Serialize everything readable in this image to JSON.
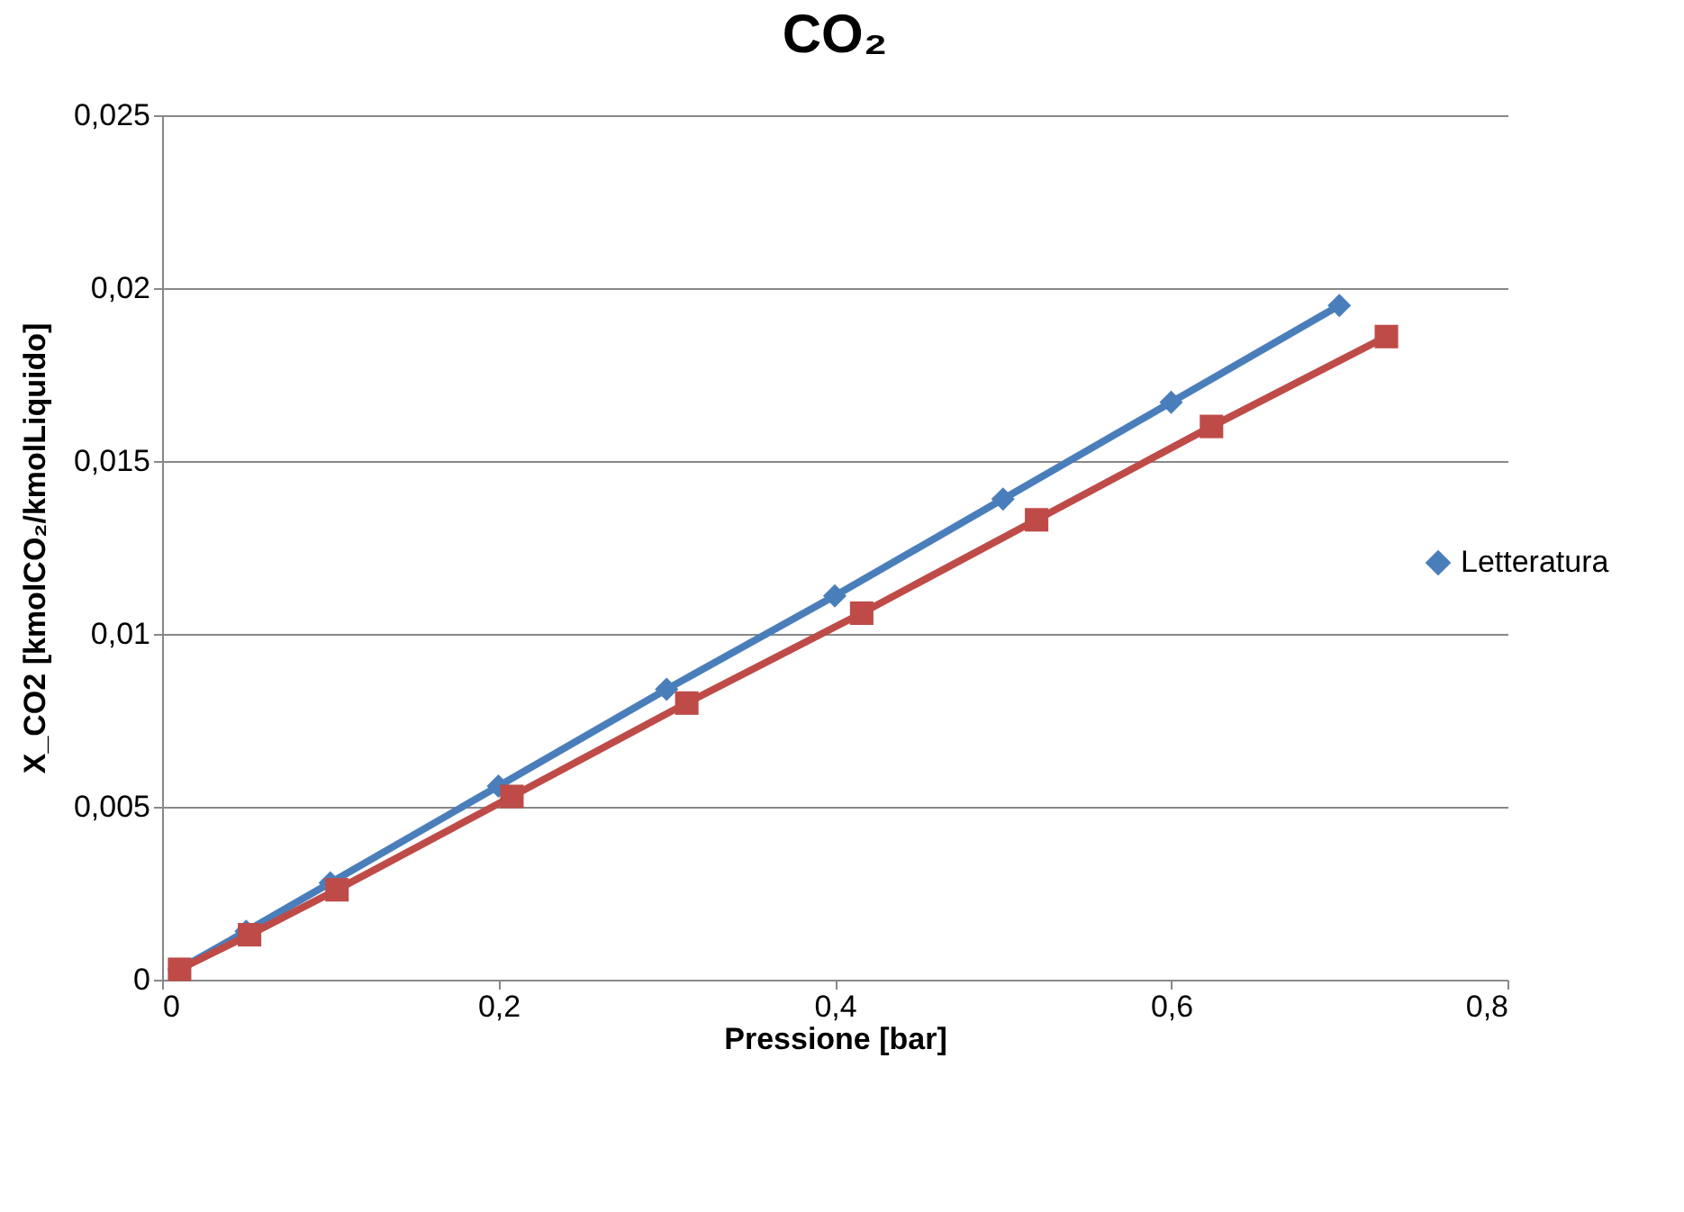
{
  "chart_data": {
    "type": "line",
    "title": "CO₂",
    "xlabel": "Pressione [bar]",
    "ylabel": "X_CO2 [kmolCO₂/kmolLiquido]",
    "series": [
      {
        "name": "Letteratura",
        "color": "#4a7ebb",
        "marker": "diamond",
        "x": [
          0.01,
          0.05,
          0.1,
          0.2,
          0.3,
          0.4,
          0.5,
          0.6,
          0.7
        ],
        "values": [
          0.0003,
          0.0014,
          0.0028,
          0.0056,
          0.0084,
          0.0111,
          0.0139,
          0.0167,
          0.0195
        ]
      },
      {
        "color": "#be4b48",
        "marker": "square",
        "x": [
          0.0104,
          0.052,
          0.104,
          0.208,
          0.312,
          0.416,
          0.52,
          0.624,
          0.728
        ],
        "values": [
          0.0003,
          0.0013,
          0.0026,
          0.0053,
          0.008,
          0.0106,
          0.0133,
          0.016,
          0.0186
        ]
      }
    ],
    "xlim": [
      0,
      0.8
    ],
    "xticks": [
      0,
      {
        "value": 0.2,
        "label": "0,2"
      },
      {
        "value": 0.4,
        "label": "0,4"
      },
      {
        "value": 0.6,
        "label": "0,6"
      },
      {
        "value": 0.8,
        "label": "0,8"
      }
    ],
    "ylim": [
      0,
      0.025
    ],
    "yticks": [
      0,
      {
        "value": 0.005,
        "label": "0,005"
      },
      {
        "value": 0.01,
        "label": "0,01"
      },
      {
        "value": 0.015,
        "label": "0,015"
      },
      {
        "value": 0.02,
        "label": "0,02"
      },
      {
        "value": 0.025,
        "label": "0,025"
      }
    ],
    "grid": "y",
    "legend": "right",
    "line_style": "solid"
  }
}
